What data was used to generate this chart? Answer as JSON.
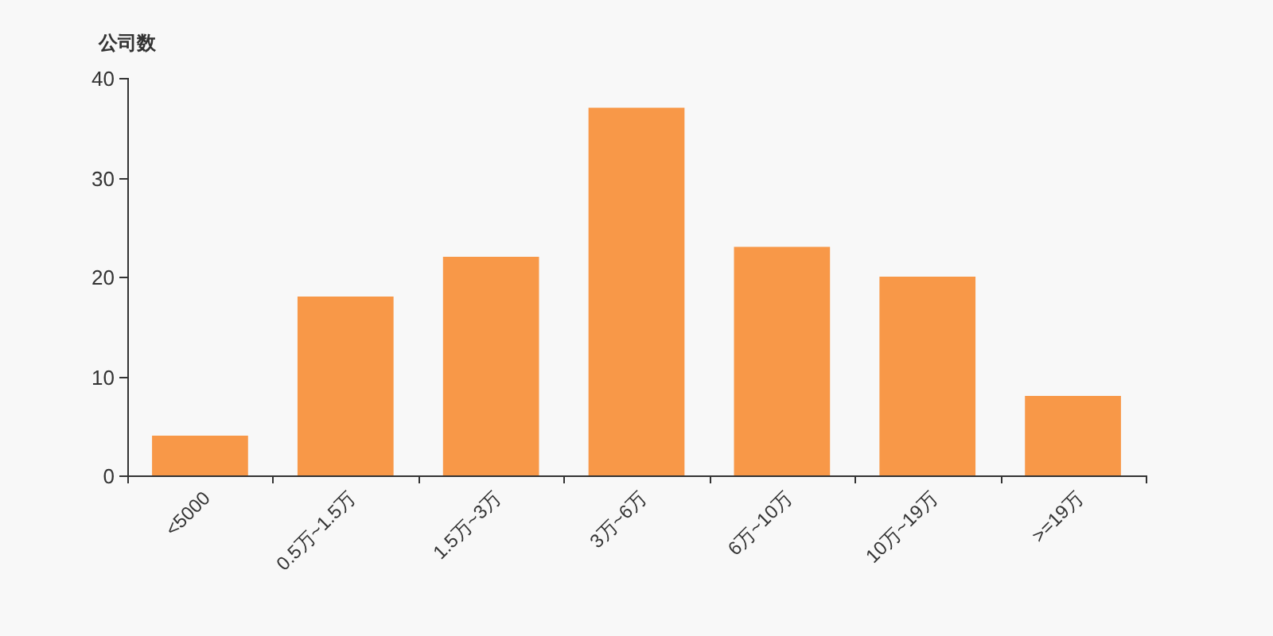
{
  "chart_data": {
    "type": "bar",
    "ylabel": "公司数",
    "categories": [
      "<5000",
      "0.5万~1.5万",
      "1.5万~3万",
      "3万~6万",
      "6万~10万",
      "10万~19万",
      ">=19万"
    ],
    "values": [
      4,
      18,
      22,
      37,
      23,
      20,
      8
    ],
    "color": "#f89848",
    "ylim": [
      0,
      40
    ],
    "yticks": [
      0,
      10,
      20,
      30,
      40
    ],
    "grid": false
  }
}
